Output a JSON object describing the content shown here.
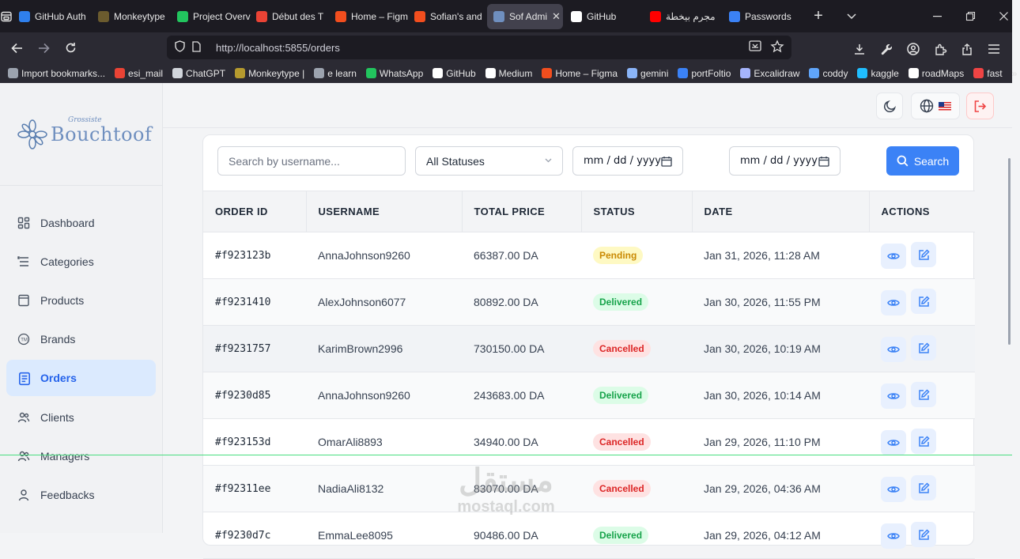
{
  "browser": {
    "tabs": [
      {
        "label": "GitHub Auth",
        "icon": "vscode-icon",
        "color": "#2f80ed"
      },
      {
        "label": "Monkeytype",
        "icon": "monkeytype-icon",
        "color": "#6b5b2e"
      },
      {
        "label": "Project Overv",
        "icon": "leaf-icon",
        "color": "#22c55e"
      },
      {
        "label": "Début des T",
        "icon": "gmail-icon",
        "color": "#ea4335"
      },
      {
        "label": "Home – Figm",
        "icon": "figma-icon",
        "color": "#f24e1e"
      },
      {
        "label": "Sofian's and",
        "icon": "figma-icon",
        "color": "#f24e1e"
      },
      {
        "label": "Sof Admi",
        "icon": "app-icon",
        "color": "#6f8fbf"
      },
      {
        "label": "GitHub",
        "icon": "github-icon",
        "color": "#ffffff"
      },
      {
        "label": "مجرم بيخطة",
        "icon": "youtube-icon",
        "color": "#ff0000"
      },
      {
        "label": "Passwords",
        "icon": "firefox-icon",
        "color": "#3b82f6"
      }
    ],
    "active_tab_close": "✕",
    "url": "http://localhost:5855/orders",
    "bookmarks": [
      {
        "label": "Import bookmarks...",
        "color": "#9ca3af"
      },
      {
        "label": "esi_mail",
        "color": "#ea4335"
      },
      {
        "label": "ChatGPT",
        "color": "#d1d5db"
      },
      {
        "label": "Monkeytype |",
        "color": "#b59a2e"
      },
      {
        "label": "e learn",
        "color": "#9ca3af"
      },
      {
        "label": "WhatsApp",
        "color": "#22c55e"
      },
      {
        "label": "GitHub",
        "color": "#ffffff"
      },
      {
        "label": "Medium",
        "color": "#ffffff"
      },
      {
        "label": "Home – Figma",
        "color": "#f24e1e"
      },
      {
        "label": "gemini",
        "color": "#8ab4f8"
      },
      {
        "label": "portFoltio",
        "color": "#3b82f6"
      },
      {
        "label": "Excalidraw",
        "color": "#a5b4fc"
      },
      {
        "label": "coddy",
        "color": "#60a5fa"
      },
      {
        "label": "kaggle",
        "color": "#20beff"
      },
      {
        "label": "roadMaps",
        "color": "#ffffff"
      },
      {
        "label": "fast",
        "color": "#ef4444"
      }
    ]
  },
  "brand": {
    "name": "Bouchtoof",
    "tagline": "Grossiste",
    "color": "#6f8fbf"
  },
  "sidebar": {
    "items": [
      {
        "label": "Dashboard",
        "icon": "dashboard-icon",
        "active": false
      },
      {
        "label": "Categories",
        "icon": "categories-icon",
        "active": false
      },
      {
        "label": "Products",
        "icon": "products-icon",
        "active": false
      },
      {
        "label": "Brands",
        "icon": "brands-icon",
        "active": false
      },
      {
        "label": "Orders",
        "icon": "orders-icon",
        "active": true
      },
      {
        "label": "Clients",
        "icon": "clients-icon",
        "active": false
      },
      {
        "label": "Managers",
        "icon": "managers-icon",
        "active": false
      },
      {
        "label": "Feedbacks",
        "icon": "feedbacks-icon",
        "active": false
      }
    ]
  },
  "filters": {
    "search_placeholder": "Search by username...",
    "status_selected": "All Statuses",
    "date_from": "mm / dd / yyyy",
    "date_to": "mm / dd / yyyy",
    "search_label": "Search"
  },
  "table": {
    "columns": [
      "ORDER ID",
      "USERNAME",
      "TOTAL PRICE",
      "STATUS",
      "DATE",
      "ACTIONS"
    ],
    "rows": [
      {
        "id": "#f923123b",
        "username": "AnnaJohnson9260",
        "total": "66387.00 DA",
        "status": "Pending",
        "date": "Jan 31, 2026, 11:28 AM"
      },
      {
        "id": "#f9231410",
        "username": "AlexJohnson6077",
        "total": "80892.00 DA",
        "status": "Delivered",
        "date": "Jan 30, 2026, 11:55 PM"
      },
      {
        "id": "#f9231757",
        "username": "KarimBrown2996",
        "total": "730150.00 DA",
        "status": "Cancelled",
        "date": "Jan 30, 2026, 10:19 AM"
      },
      {
        "id": "#f9230d85",
        "username": "AnnaJohnson9260",
        "total": "243683.00 DA",
        "status": "Delivered",
        "date": "Jan 30, 2026, 10:14 AM"
      },
      {
        "id": "#f923153d",
        "username": "OmarAli8893",
        "total": "34940.00 DA",
        "status": "Cancelled",
        "date": "Jan 29, 2026, 11:10 PM"
      },
      {
        "id": "#f92311ee",
        "username": "NadiaAli8132",
        "total": "83070.00 DA",
        "status": "Cancelled",
        "date": "Jan 29, 2026, 04:36 AM"
      },
      {
        "id": "#f9230d7c",
        "username": "EmmaLee8095",
        "total": "90486.00 DA",
        "status": "Delivered",
        "date": "Jan 29, 2026, 04:12 AM"
      }
    ]
  },
  "watermark": {
    "line1": "مستقل",
    "line2": "mostaql.com"
  }
}
